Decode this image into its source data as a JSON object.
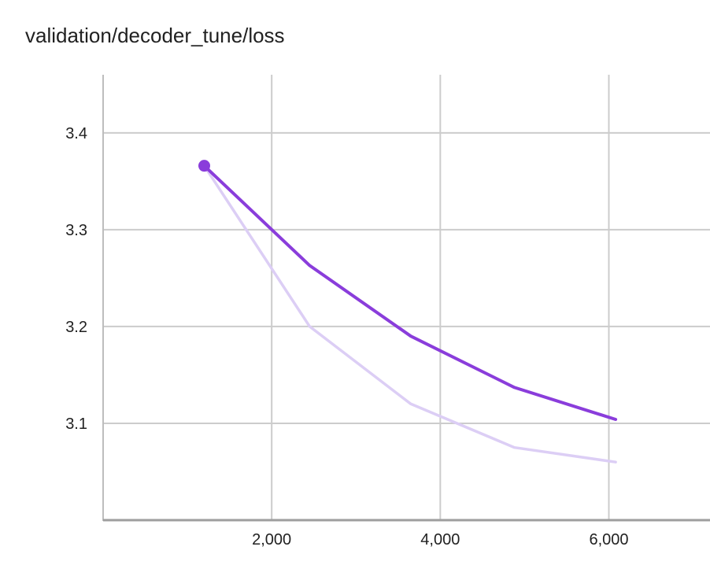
{
  "chart_data": {
    "type": "line",
    "title": "validation/decoder_tune/loss",
    "xlabel": "",
    "ylabel": "",
    "xlim": [
      0,
      7200
    ],
    "ylim": [
      3.0,
      3.46
    ],
    "x_ticks": [
      2000,
      4000,
      6000
    ],
    "x_tick_labels": [
      "2,000",
      "4,000",
      "6,000"
    ],
    "y_ticks": [
      3.1,
      3.2,
      3.3,
      3.4
    ],
    "y_tick_labels": [
      "3.1",
      "3.2",
      "3.3",
      "3.4"
    ],
    "grid": true,
    "series": [
      {
        "role": "raw",
        "color": "#dccef5",
        "x": [
          1200,
          2450,
          3650,
          4880,
          6080
        ],
        "y": [
          3.366,
          3.2,
          3.12,
          3.075,
          3.06
        ]
      },
      {
        "role": "smoothed",
        "color": "#8a3ddb",
        "x": [
          1200,
          2450,
          3650,
          4880,
          6080
        ],
        "y": [
          3.366,
          3.263,
          3.19,
          3.137,
          3.104
        ],
        "highlight_first_point": true
      }
    ]
  }
}
